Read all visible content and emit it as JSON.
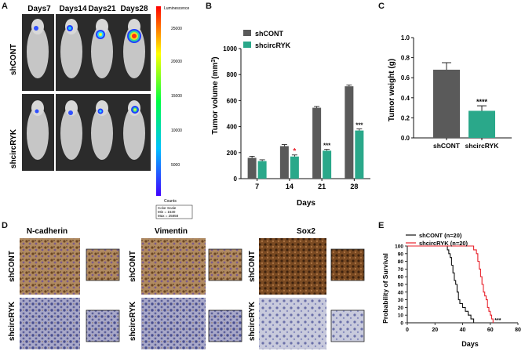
{
  "panels": {
    "a": "A",
    "b": "B",
    "c": "C",
    "d": "D",
    "e": "E"
  },
  "panel_a": {
    "day_labels": [
      "Days7",
      "Days14",
      "Days21",
      "Days28"
    ],
    "row_labels": [
      "shCONT",
      "shcircRYK"
    ],
    "colorbar_title": "Luminescence",
    "colorbar_ticks": [
      "25000",
      "20000",
      "15000",
      "10000",
      "5000"
    ],
    "colorbar_units": "Counts",
    "color_scale_lines": [
      "Color Scale",
      "Min = 1530",
      "Max = 25858"
    ],
    "colors": {
      "bg": "#2a2a2a",
      "mouse": "#c9c9c9"
    }
  },
  "panel_d": {
    "stain_titles": [
      "N-cadherin",
      "Vimentin",
      "Sox2"
    ],
    "row_labels": [
      "shCONT",
      "shcircRYK"
    ],
    "colors": {
      "brown": "#8a5a32",
      "blue": "#6e73a8",
      "light": "#c9b9a0"
    }
  },
  "chart_data": [
    {
      "id": "B",
      "type": "bar",
      "title": "",
      "xlabel": "Days",
      "ylabel": "Tumor volume (mm",
      "ylabel_sup": "3",
      "ylabel_end": ")",
      "categories": [
        "7",
        "14",
        "21",
        "28"
      ],
      "ylim": [
        0,
        1000
      ],
      "yticks": [
        0,
        200,
        400,
        600,
        800,
        1000
      ],
      "series": [
        {
          "name": "shCONT",
          "values": [
            160,
            250,
            545,
            710
          ],
          "errors": [
            12,
            12,
            10,
            10
          ],
          "color": "#5a5a5a"
        },
        {
          "name": "shcircRYK",
          "values": [
            135,
            170,
            215,
            370
          ],
          "errors": [
            10,
            12,
            10,
            12
          ],
          "color": "#2aa88a"
        }
      ],
      "annotations": [
        "",
        "*",
        "***",
        "***"
      ]
    },
    {
      "id": "C",
      "type": "bar",
      "xlabel": "",
      "ylabel": "Tumor weight (g)",
      "categories": [
        "shCONT",
        "shcircRYK"
      ],
      "values": [
        0.68,
        0.27
      ],
      "errors": [
        0.07,
        0.05
      ],
      "colors": [
        "#5a5a5a",
        "#2aa88a"
      ],
      "ylim": [
        0,
        1.0
      ],
      "yticks": [
        "0.0",
        "0.2",
        "0.4",
        "0.6",
        "0.8",
        "1.0"
      ],
      "annotation": "****"
    },
    {
      "id": "E",
      "type": "line",
      "xlabel": "Days",
      "ylabel": "Probability of Survival",
      "xlim": [
        0,
        80
      ],
      "ylim": [
        0,
        100
      ],
      "xticks": [
        0,
        20,
        40,
        60,
        80
      ],
      "yticks": [
        0,
        10,
        20,
        30,
        40,
        50,
        60,
        70,
        80,
        90,
        100
      ],
      "series": [
        {
          "name": "shCONT (n=20)",
          "color": "#111111",
          "x": [
            0,
            28,
            29,
            30,
            31,
            32,
            33,
            34,
            35,
            36,
            37,
            38,
            40,
            42,
            44,
            46,
            48
          ],
          "y": [
            100,
            100,
            95,
            90,
            85,
            75,
            65,
            55,
            50,
            40,
            30,
            25,
            20,
            15,
            10,
            5,
            0
          ]
        },
        {
          "name": "shcircRYK (n=20)",
          "color": "#e8202a",
          "x": [
            0,
            46,
            48,
            50,
            51,
            52,
            53,
            54,
            55,
            56,
            57,
            58,
            59,
            60,
            61,
            62
          ],
          "y": [
            100,
            100,
            95,
            90,
            80,
            70,
            60,
            50,
            40,
            35,
            30,
            20,
            15,
            10,
            5,
            0
          ]
        }
      ],
      "annotation": "***"
    }
  ]
}
